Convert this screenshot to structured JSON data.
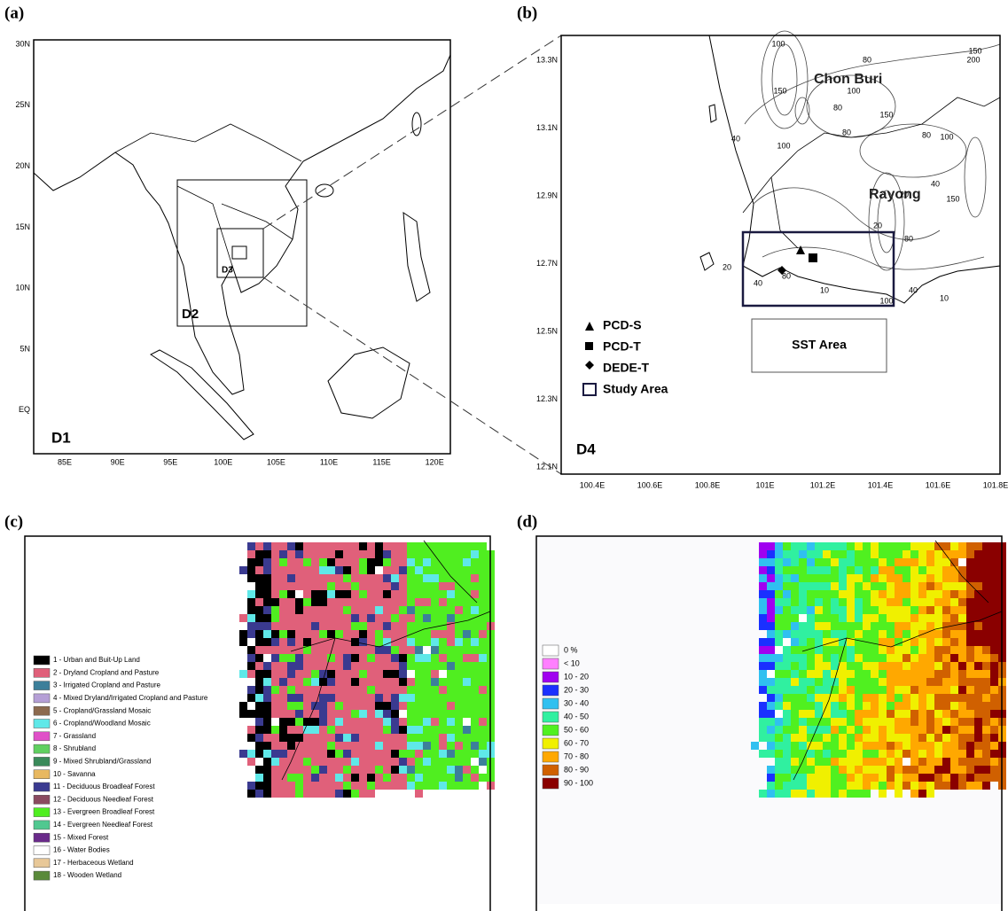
{
  "panels": {
    "a": {
      "label": "(a)",
      "lat_labels": [
        "30N",
        "25N",
        "20N",
        "15N",
        "10N",
        "5N",
        "EQ"
      ],
      "lon_labels": [
        "85E",
        "90E",
        "95E",
        "100E",
        "105E",
        "110E",
        "115E",
        "120E"
      ],
      "domains": [
        "D1",
        "D2",
        "D3"
      ]
    },
    "b": {
      "label": "(b)",
      "lat_labels": [
        "13.3N",
        "13.1N",
        "12.9N",
        "12.7N",
        "12.5N",
        "12.3N",
        "12.1N"
      ],
      "lon_labels": [
        "100.4E",
        "100.6E",
        "100.8E",
        "101E",
        "101.2E",
        "101.4E",
        "101.6E",
        "101.8E"
      ],
      "places": [
        "Chon Buri",
        "Rayong"
      ],
      "contour_labels": [
        100,
        80,
        150,
        200,
        150,
        100,
        40,
        80,
        150,
        100,
        80,
        80,
        100,
        40,
        20,
        150,
        20,
        80,
        20,
        40,
        80,
        10,
        40,
        100,
        10
      ],
      "legend": [
        "PCD-S",
        "PCD-T",
        "DEDE-T",
        "Study Area"
      ],
      "sst_label": "SST Area",
      "domain": "D4"
    },
    "c": {
      "label": "(c)",
      "legend": [
        {
          "label": "1 - Urban and Buit-Up Land",
          "color": "#000000"
        },
        {
          "label": "2 - Dryland Cropland and Pasture",
          "color": "#e0607a"
        },
        {
          "label": "3 - Irrigated Cropland and Pasture",
          "color": "#3c7f9a"
        },
        {
          "label": "4 - Mixed Dryland/Irrigated Cropland and Pasture",
          "color": "#b59fd6"
        },
        {
          "label": "5 - Cropland/Grassland Mosaic",
          "color": "#8c6a4e"
        },
        {
          "label": "6 - Cropland/Woodland Mosaic",
          "color": "#5fe8e8"
        },
        {
          "label": "7 - Grassland",
          "color": "#e050c8"
        },
        {
          "label": "8 - Shrubland",
          "color": "#60d060"
        },
        {
          "label": "9 - Mixed Shrubland/Grassland",
          "color": "#3a8a5a"
        },
        {
          "label": "10 - Savanna",
          "color": "#e8b860"
        },
        {
          "label": "11 - Deciduous Broadleaf Forest",
          "color": "#3a3a90"
        },
        {
          "label": "12 - Deciduous Needleaf Forest",
          "color": "#8a4a60"
        },
        {
          "label": "13 - Evergreen Broadleaf Forest",
          "color": "#50ee20"
        },
        {
          "label": "14 - Evergreen Needleaf Forest",
          "color": "#50c890"
        },
        {
          "label": "15 - Mixed Forest",
          "color": "#6a2a8a"
        },
        {
          "label": "16 - Water Bodies",
          "color": "#ffffff"
        },
        {
          "label": "17 - Herbaceous Wetland",
          "color": "#e8c898"
        },
        {
          "label": "18 - Wooden Wetland",
          "color": "#5a8a3a"
        }
      ]
    },
    "d": {
      "label": "(d)",
      "legend": [
        {
          "label": "0 %",
          "color": "#ffffff"
        },
        {
          "label": "< 10",
          "color": "#ff80ff"
        },
        {
          "label": "10 - 20",
          "color": "#a000f0"
        },
        {
          "label": "20 - 30",
          "color": "#1a30ff"
        },
        {
          "label": "30 - 40",
          "color": "#30c0f0"
        },
        {
          "label": "40 - 50",
          "color": "#30f0a0"
        },
        {
          "label": "50 - 60",
          "color": "#50f020"
        },
        {
          "label": "60 - 70",
          "color": "#f0f000"
        },
        {
          "label": "70 - 80",
          "color": "#ffa800"
        },
        {
          "label": "80 - 90",
          "color": "#d06000"
        },
        {
          "label": "90 - 100",
          "color": "#8a0000"
        }
      ]
    }
  }
}
